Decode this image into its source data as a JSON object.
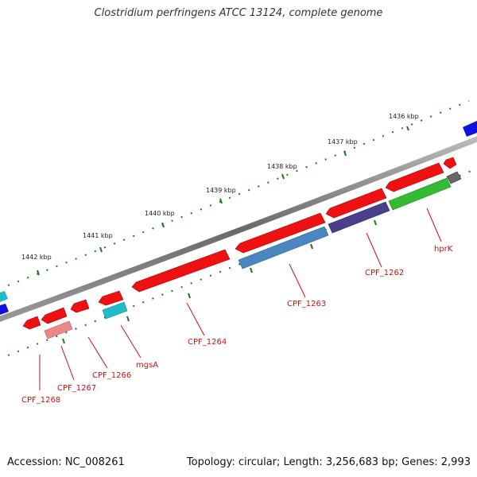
{
  "title": "Clostridium perfringens ATCC 13124, complete genome",
  "footer": {
    "accession": "Accession: NC_008261",
    "summary": "Topology: circular; Length: 3,256,683 bp; Genes: 2,993"
  },
  "scale_labels": [
    "1436 kbp",
    "1437 kbp",
    "1438 kbp",
    "1439 kbp",
    "1440 kbp",
    "1441 kbp",
    "1442 kbp"
  ],
  "gene_labels": [
    "hprK",
    "CPF_1262",
    "CPF_1263",
    "CPF_1264",
    "mgsA",
    "CPF_1266",
    "CPF_1267",
    "CPF_1268"
  ],
  "colors": {
    "backbone": "#777777",
    "gene_red": "#ee1111",
    "label_red": "#cc1111",
    "tick_green": "#1a7a1a",
    "steelblue": "#4a86c0",
    "slateblue": "#4a3f8c",
    "green": "#33bb33",
    "cyan": "#22bbcc",
    "pink": "#ee8888",
    "gray": "#666666",
    "blue": "#1111dd"
  }
}
